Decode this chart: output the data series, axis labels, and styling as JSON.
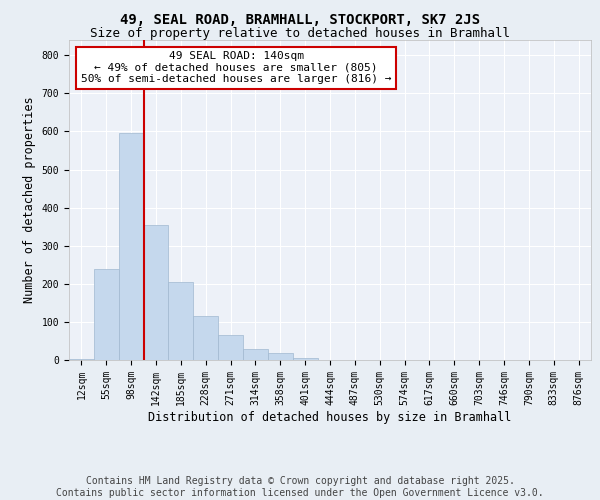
{
  "title_line1": "49, SEAL ROAD, BRAMHALL, STOCKPORT, SK7 2JS",
  "title_line2": "Size of property relative to detached houses in Bramhall",
  "xlabel": "Distribution of detached houses by size in Bramhall",
  "ylabel": "Number of detached properties",
  "categories": [
    "12sqm",
    "55sqm",
    "98sqm",
    "142sqm",
    "185sqm",
    "228sqm",
    "271sqm",
    "314sqm",
    "358sqm",
    "401sqm",
    "444sqm",
    "487sqm",
    "530sqm",
    "574sqm",
    "617sqm",
    "660sqm",
    "703sqm",
    "746sqm",
    "790sqm",
    "833sqm",
    "876sqm"
  ],
  "values": [
    2,
    238,
    595,
    355,
    205,
    115,
    65,
    30,
    18,
    5,
    0,
    0,
    0,
    0,
    0,
    0,
    0,
    0,
    0,
    0,
    0
  ],
  "bar_color": "#c5d8ed",
  "bar_edge_color": "#a0b8d0",
  "vline_color": "#cc0000",
  "vline_index": 2.5,
  "annotation_text": "49 SEAL ROAD: 140sqm\n← 49% of detached houses are smaller (805)\n50% of semi-detached houses are larger (816) →",
  "annotation_box_color": "#ffffff",
  "annotation_border_color": "#cc0000",
  "ylim": [
    0,
    840
  ],
  "yticks": [
    0,
    100,
    200,
    300,
    400,
    500,
    600,
    700,
    800
  ],
  "background_color": "#e8eef4",
  "plot_background_color": "#edf1f8",
  "grid_color": "#ffffff",
  "footer_text": "Contains HM Land Registry data © Crown copyright and database right 2025.\nContains public sector information licensed under the Open Government Licence v3.0.",
  "title_fontsize": 10,
  "subtitle_fontsize": 9,
  "axis_label_fontsize": 8.5,
  "tick_fontsize": 7,
  "annotation_fontsize": 8,
  "footer_fontsize": 7
}
